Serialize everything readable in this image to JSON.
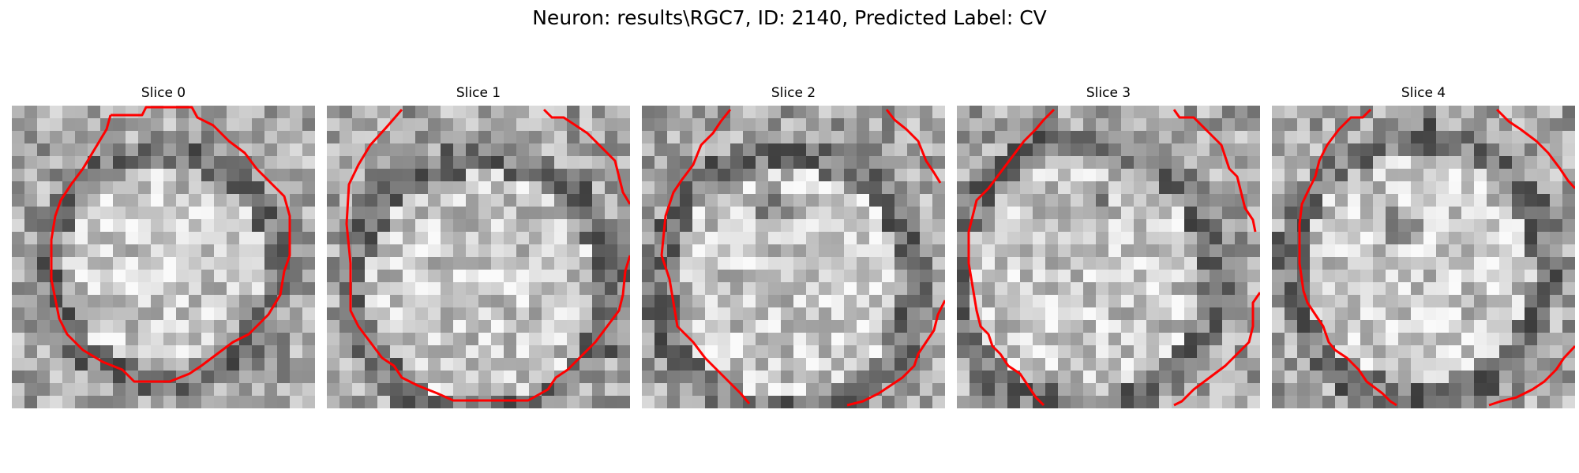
{
  "figure": {
    "title": "Neuron: results\\RGC7, ID: 2140, Predicted Label: CV"
  },
  "panels": [
    {
      "title": "Slice 0",
      "grid": 24
    },
    {
      "title": "Slice 1",
      "grid": 24
    },
    {
      "title": "Slice 2",
      "grid": 24
    },
    {
      "title": "Slice 3",
      "grid": 24
    },
    {
      "title": "Slice 4",
      "grid": 24
    }
  ],
  "colors": {
    "contour": "#ff0000",
    "background": "#ffffff"
  }
}
